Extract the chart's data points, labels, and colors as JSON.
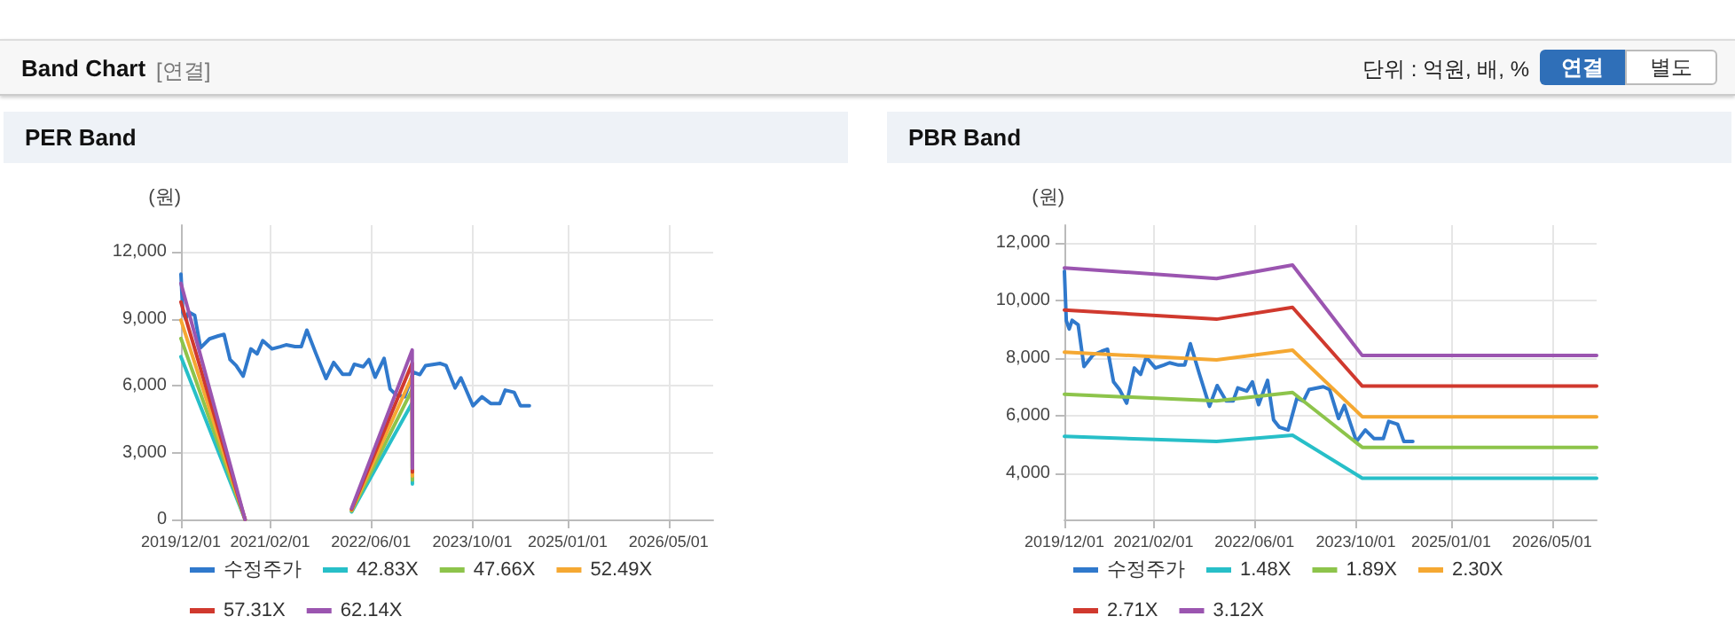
{
  "chart_data": [
    {
      "type": "other",
      "title": "Band Chart",
      "annotations": [
        "[연결]",
        "단위 : 억원, 배, %",
        "연결",
        "별도"
      ]
    },
    {
      "type": "line",
      "title": "PER Band",
      "ylabel": "(원)",
      "xlim": [
        "2019-12-01",
        "2026-12-01"
      ],
      "ylim": [
        0,
        13200
      ],
      "xticks": [
        {
          "value": "2019-12-01",
          "label": "2019/12/01"
        },
        {
          "value": "2021-02-01",
          "label": "2021/02/01"
        },
        {
          "value": "2022-06-01",
          "label": "2022/06/01"
        },
        {
          "value": "2023-10-01",
          "label": "2023/10/01"
        },
        {
          "value": "2025-01-01",
          "label": "2025/01/01"
        },
        {
          "value": "2026-05-01",
          "label": "2026/05/01"
        }
      ],
      "yticks": [
        {
          "value": 0,
          "label": "0"
        },
        {
          "value": 3000,
          "label": "3,000"
        },
        {
          "value": 6000,
          "label": "6,000"
        },
        {
          "value": 9000,
          "label": "9,000"
        },
        {
          "value": 12000,
          "label": "12,000"
        }
      ],
      "grid": true,
      "legend": "bottom",
      "marker": "none",
      "line_style": "solid",
      "series": [
        {
          "name": "수정주가",
          "color": "#3079cc",
          "x": [
            "2019-12-01",
            "2019-12-10",
            "2019-12-24",
            "2020-01-07",
            "2020-02-05",
            "2020-03-04",
            "2020-04-16",
            "2020-05-28",
            "2020-06-25",
            "2020-07-24",
            "2020-08-22",
            "2020-09-25",
            "2020-11-01",
            "2020-12-01",
            "2020-12-28",
            "2021-02-10",
            "2021-03-22",
            "2021-04-19",
            "2021-06-01",
            "2021-07-01",
            "2021-07-28",
            "2021-09-10",
            "2021-10-28",
            "2021-12-04",
            "2022-01-16",
            "2022-02-19",
            "2022-03-13",
            "2022-04-25",
            "2022-05-22",
            "2022-06-21",
            "2022-08-03",
            "2022-09-01",
            "2022-09-28",
            "2022-11-10",
            "2022-12-22",
            "2023-01-22",
            "2023-02-18",
            "2023-04-28",
            "2023-05-28",
            "2023-07-10",
            "2023-08-07",
            "2023-10-04",
            "2023-11-16",
            "2023-12-28",
            "2024-02-10",
            "2024-03-07",
            "2024-04-19",
            "2024-05-19",
            "2024-07-01"
          ],
          "values": [
            11000,
            9290,
            9000,
            9300,
            9150,
            7700,
            8100,
            8230,
            8300,
            7170,
            6900,
            6430,
            7650,
            7430,
            8020,
            7650,
            7750,
            7830,
            7750,
            7750,
            8490,
            7430,
            6320,
            7040,
            6510,
            6510,
            6960,
            6850,
            7170,
            6380,
            7220,
            5850,
            5600,
            5500,
            6600,
            6500,
            6900,
            7000,
            6900,
            5900,
            6350,
            5100,
            5500,
            5200,
            5200,
            5800,
            5700,
            5100,
            5100
          ]
        },
        {
          "name": "42.83X",
          "color": "#27bfc8",
          "x": [
            "2019-12-01",
            "2020-10-04",
            "2021-06-01",
            "2022-02-28",
            "2022-12-16",
            "2022-12-17"
          ],
          "values": [
            7300,
            0,
            null,
            340,
            5230,
            1590
          ]
        },
        {
          "name": "47.66X",
          "color": "#8dc44b",
          "x": [
            "2019-12-01",
            "2020-10-04",
            "2021-06-01",
            "2022-02-28",
            "2022-12-16",
            "2022-12-17"
          ],
          "values": [
            8120,
            0,
            null,
            380,
            5830,
            1770
          ]
        },
        {
          "name": "52.49X",
          "color": "#f5a832",
          "x": [
            "2019-12-01",
            "2020-10-04",
            "2021-06-01",
            "2022-02-28",
            "2022-12-16",
            "2022-12-17"
          ],
          "values": [
            8940,
            0,
            null,
            420,
            6420,
            1950
          ]
        },
        {
          "name": "57.31X",
          "color": "#d0392e",
          "x": [
            "2019-12-01",
            "2020-10-04",
            "2021-06-01",
            "2022-02-28",
            "2022-12-16",
            "2022-12-17"
          ],
          "values": [
            9750,
            0,
            null,
            460,
            7010,
            2130
          ]
        },
        {
          "name": "62.14X",
          "color": "#9b55b0",
          "x": [
            "2019-12-01",
            "2020-10-04",
            "2021-06-01",
            "2022-02-28",
            "2022-12-16",
            "2022-12-17"
          ],
          "values": [
            10590,
            0,
            null,
            500,
            7600,
            2300
          ]
        }
      ]
    },
    {
      "type": "line",
      "title": "PBR Band",
      "ylabel": "(원)",
      "xlim": [
        "2019-12-01",
        "2026-12-01"
      ],
      "ylim": [
        2400,
        12600
      ],
      "xticks": [
        {
          "value": "2019-12-01",
          "label": "2019/12/01"
        },
        {
          "value": "2021-02-01",
          "label": "2021/02/01"
        },
        {
          "value": "2022-06-01",
          "label": "2022/06/01"
        },
        {
          "value": "2023-10-01",
          "label": "2023/10/01"
        },
        {
          "value": "2025-01-01",
          "label": "2025/01/01"
        },
        {
          "value": "2026-05-01",
          "label": "2026/05/01"
        }
      ],
      "yticks": [
        {
          "value": 4000,
          "label": "4,000"
        },
        {
          "value": 6000,
          "label": "6,000"
        },
        {
          "value": 8000,
          "label": "8,000"
        },
        {
          "value": 10000,
          "label": "10,000"
        },
        {
          "value": 12000,
          "label": "12,000"
        }
      ],
      "grid": true,
      "legend": "bottom",
      "marker": "none",
      "line_style": "solid",
      "series": [
        {
          "name": "수정주가",
          "color": "#3079cc",
          "x": [
            "2019-12-01",
            "2019-12-10",
            "2019-12-24",
            "2020-01-07",
            "2020-02-05",
            "2020-03-04",
            "2020-04-16",
            "2020-05-28",
            "2020-06-25",
            "2020-07-24",
            "2020-08-22",
            "2020-09-25",
            "2020-11-01",
            "2020-12-01",
            "2020-12-28",
            "2021-02-10",
            "2021-03-22",
            "2021-04-19",
            "2021-06-01",
            "2021-07-01",
            "2021-07-28",
            "2021-09-10",
            "2021-10-28",
            "2021-12-04",
            "2022-01-16",
            "2022-02-19",
            "2022-03-13",
            "2022-04-25",
            "2022-05-22",
            "2022-06-21",
            "2022-08-03",
            "2022-09-01",
            "2022-09-28",
            "2022-11-10",
            "2022-12-22",
            "2023-01-22",
            "2023-02-18",
            "2023-04-28",
            "2023-05-28",
            "2023-07-10",
            "2023-08-07",
            "2023-10-04",
            "2023-11-16",
            "2023-12-28",
            "2024-02-10",
            "2024-03-07",
            "2024-04-19",
            "2024-05-19",
            "2024-07-01"
          ],
          "values": [
            11000,
            9290,
            9000,
            9300,
            9150,
            7700,
            8100,
            8230,
            8300,
            7170,
            6900,
            6430,
            7650,
            7430,
            8020,
            7650,
            7750,
            7830,
            7750,
            7750,
            8490,
            7430,
            6320,
            7040,
            6510,
            6510,
            6960,
            6850,
            7170,
            6380,
            7220,
            5850,
            5600,
            5500,
            6600,
            6500,
            6900,
            7000,
            6900,
            5900,
            6350,
            5100,
            5500,
            5200,
            5200,
            5800,
            5700,
            5100,
            5100
          ]
        },
        {
          "name": "1.48X",
          "color": "#27bfc8",
          "x": [
            "2019-12-01",
            "2021-12-01",
            "2022-12-01",
            "2023-11-01",
            "2026-12-01"
          ],
          "values": [
            5280,
            5100,
            5320,
            3830,
            3830
          ]
        },
        {
          "name": "1.89X",
          "color": "#8dc44b",
          "x": [
            "2019-12-01",
            "2021-12-01",
            "2022-12-01",
            "2023-11-01",
            "2026-12-01"
          ],
          "values": [
            6740,
            6510,
            6800,
            4900,
            4900
          ]
        },
        {
          "name": "2.30X",
          "color": "#f5a832",
          "x": [
            "2019-12-01",
            "2021-12-01",
            "2022-12-01",
            "2023-11-01",
            "2026-12-01"
          ],
          "values": [
            8200,
            7930,
            8270,
            5960,
            5960
          ]
        },
        {
          "name": "2.71X",
          "color": "#d0392e",
          "x": [
            "2019-12-01",
            "2021-12-01",
            "2022-12-01",
            "2023-11-01",
            "2026-12-01"
          ],
          "values": [
            9660,
            9340,
            9750,
            7020,
            7020
          ]
        },
        {
          "name": "3.12X",
          "color": "#9b55b0",
          "x": [
            "2019-12-01",
            "2021-12-01",
            "2022-12-01",
            "2023-11-01",
            "2026-12-01"
          ],
          "values": [
            11120,
            10750,
            11220,
            8080,
            8080
          ]
        }
      ]
    }
  ]
}
